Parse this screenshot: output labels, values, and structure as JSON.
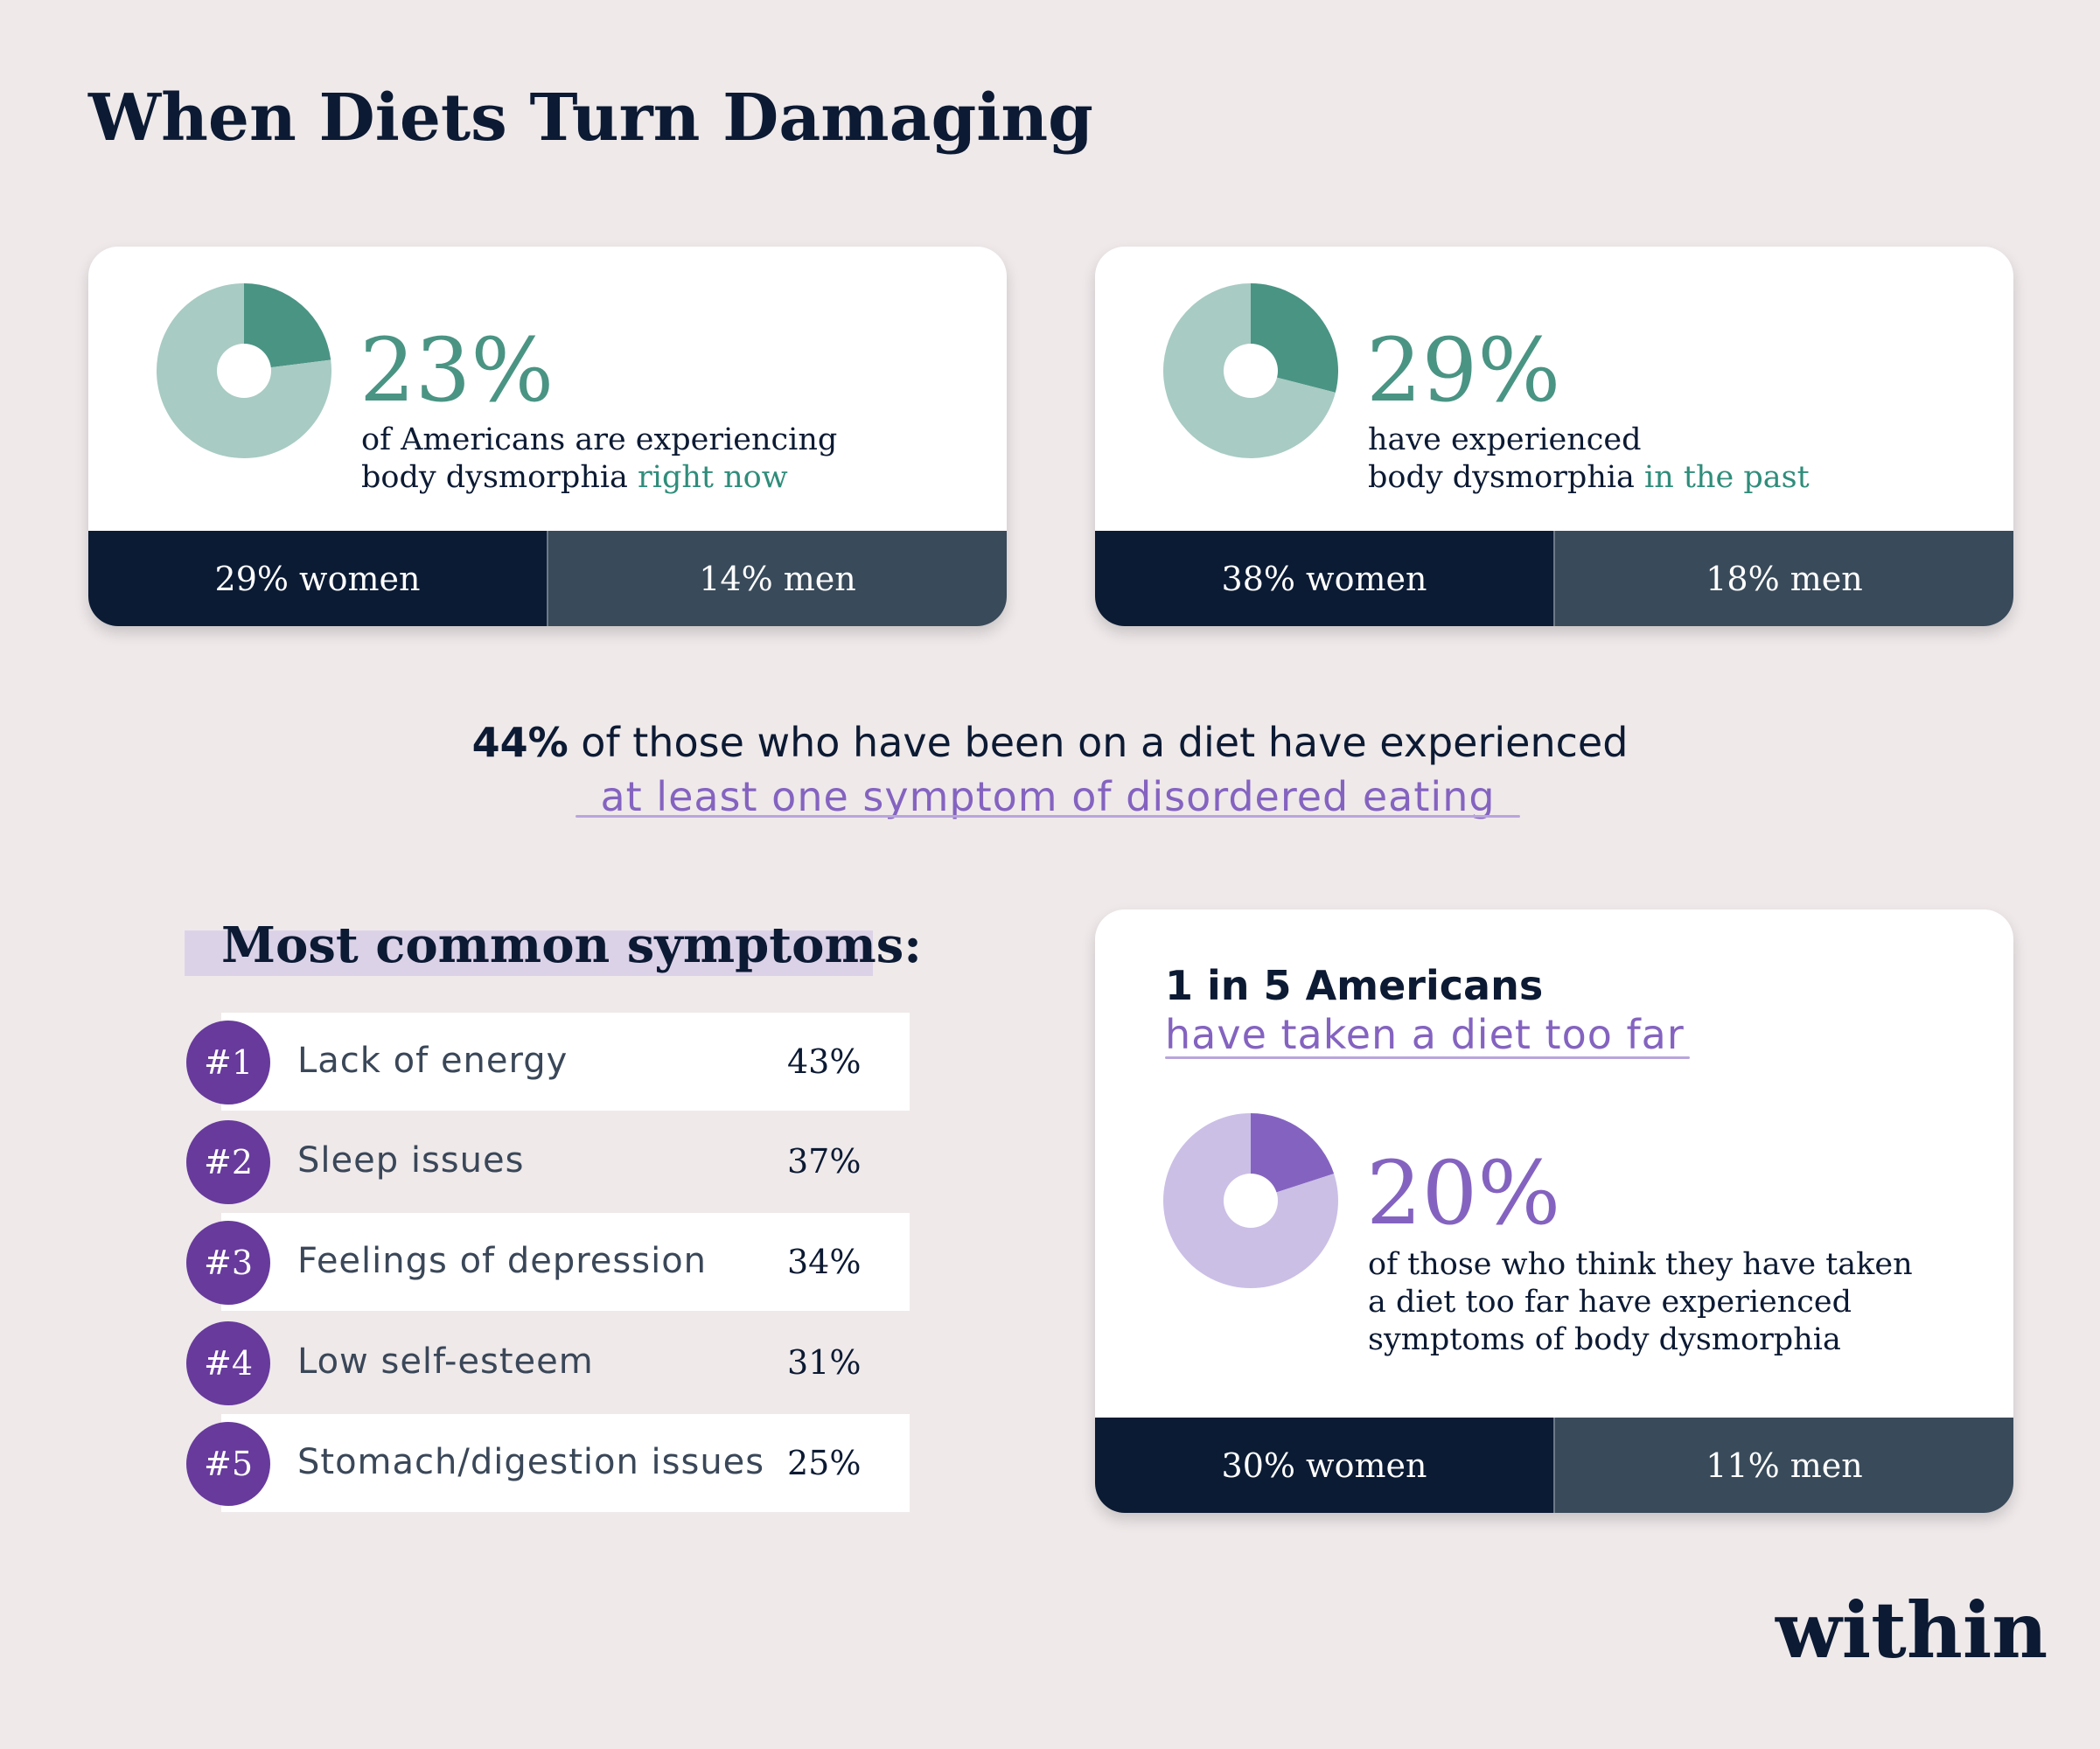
{
  "title": "When Diets Turn Damaging",
  "colors": {
    "background": "#efe9ea",
    "navy": "#0b1b34",
    "slate": "#394a5a",
    "teal": "#4a9484",
    "teal_light": "#a8cbc3",
    "purple": "#8463c0",
    "purple_light": "#cbbfe6",
    "badge_purple": "#673a9c"
  },
  "cards": [
    {
      "value_label": "23%",
      "desc_line1": "of Americans are experiencing",
      "desc_line2_prefix": "body dysmorphia ",
      "desc_line2_highlight": "right now",
      "women": "29% women",
      "men": "14% men"
    },
    {
      "value_label": "29%",
      "desc_line1": "have experienced",
      "desc_line2_prefix": "body dysmorphia ",
      "desc_line2_highlight": "in the past",
      "women": "38% women",
      "men": "18% men"
    }
  ],
  "middle": {
    "bold": "44%",
    "rest": " of those who have been on a diet have experienced",
    "highlight": "at least one symptom of disordered eating"
  },
  "symptoms": {
    "heading": "Most common symptoms:",
    "items": [
      {
        "rank": "#1",
        "label": "Lack of energy",
        "value": "43%"
      },
      {
        "rank": "#2",
        "label": "Sleep issues",
        "value": "37%"
      },
      {
        "rank": "#3",
        "label": "Feelings of depression",
        "value": "34%"
      },
      {
        "rank": "#4",
        "label": "Low self-esteem",
        "value": "31%"
      },
      {
        "rank": "#5",
        "label": "Stomach/digestion issues",
        "value": "25%"
      }
    ]
  },
  "card3": {
    "line1": "1 in 5 Americans",
    "line2": "have taken a diet too far",
    "value_label": "20%",
    "desc_line1": "of those who think they have taken",
    "desc_line2": "a diet too far have experienced",
    "desc_line3": "symptoms of body dysmorphia",
    "women": "30% women",
    "men": "11% men"
  },
  "brand": "within",
  "chart_data": [
    {
      "type": "pie",
      "categories": [
        "",
        ""
      ],
      "values": [
        23,
        77
      ],
      "colors": [
        "#4a9484",
        "#a8cbc3"
      ]
    },
    {
      "type": "pie",
      "categories": [
        "",
        ""
      ],
      "values": [
        29,
        71
      ],
      "colors": [
        "#4a9484",
        "#a8cbc3"
      ]
    },
    {
      "type": "pie",
      "categories": [
        "",
        ""
      ],
      "values": [
        20,
        80
      ],
      "colors": [
        "#8463c0",
        "#cbbfe6"
      ]
    },
    {
      "type": "bar",
      "categories": [
        "Lack of energy",
        "Sleep issues",
        "Feelings of depression",
        "Low self-esteem",
        "Stomach/digestion issues"
      ],
      "values": [
        43,
        37,
        34,
        31,
        25
      ],
      "title": "Most common symptoms:"
    }
  ]
}
